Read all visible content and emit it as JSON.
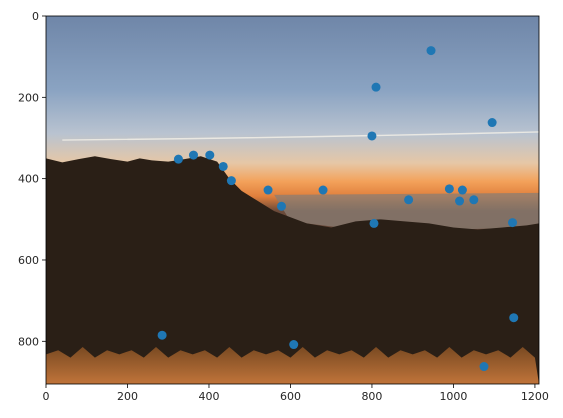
{
  "chart_data": {
    "type": "scatter",
    "title": "",
    "xlabel": "",
    "ylabel": "",
    "xlim": [
      0,
      1210
    ],
    "ylim": [
      905,
      0
    ],
    "y_inverted": true,
    "background": "photograph: sunset over hills and bay, dark tree silhouettes, dry grass foreground",
    "x_ticks": [
      {
        "value": 0,
        "label": "0"
      },
      {
        "value": 200,
        "label": "200"
      },
      {
        "value": 400,
        "label": "400"
      },
      {
        "value": 600,
        "label": "600"
      },
      {
        "value": 800,
        "label": "800"
      },
      {
        "value": 1000,
        "label": "1000"
      },
      {
        "value": 1200,
        "label": "1200"
      }
    ],
    "y_ticks": [
      {
        "value": 0,
        "label": "0"
      },
      {
        "value": 200,
        "label": "200"
      },
      {
        "value": 400,
        "label": "400"
      },
      {
        "value": 600,
        "label": "600"
      },
      {
        "value": 800,
        "label": "800"
      }
    ],
    "marker_color": "#1f77b4",
    "series": [
      {
        "points": [
          {
            "x": 945,
            "y": 85
          },
          {
            "x": 810,
            "y": 175
          },
          {
            "x": 1095,
            "y": 262
          },
          {
            "x": 800,
            "y": 295
          },
          {
            "x": 325,
            "y": 352
          },
          {
            "x": 362,
            "y": 342
          },
          {
            "x": 402,
            "y": 342
          },
          {
            "x": 435,
            "y": 370
          },
          {
            "x": 455,
            "y": 405
          },
          {
            "x": 545,
            "y": 428
          },
          {
            "x": 680,
            "y": 428
          },
          {
            "x": 578,
            "y": 468
          },
          {
            "x": 990,
            "y": 425
          },
          {
            "x": 1022,
            "y": 428
          },
          {
            "x": 890,
            "y": 452
          },
          {
            "x": 1015,
            "y": 455
          },
          {
            "x": 1050,
            "y": 452
          },
          {
            "x": 805,
            "y": 510
          },
          {
            "x": 1145,
            "y": 508
          },
          {
            "x": 1148,
            "y": 742
          },
          {
            "x": 285,
            "y": 785
          },
          {
            "x": 608,
            "y": 808
          },
          {
            "x": 1075,
            "y": 862
          }
        ]
      }
    ]
  }
}
